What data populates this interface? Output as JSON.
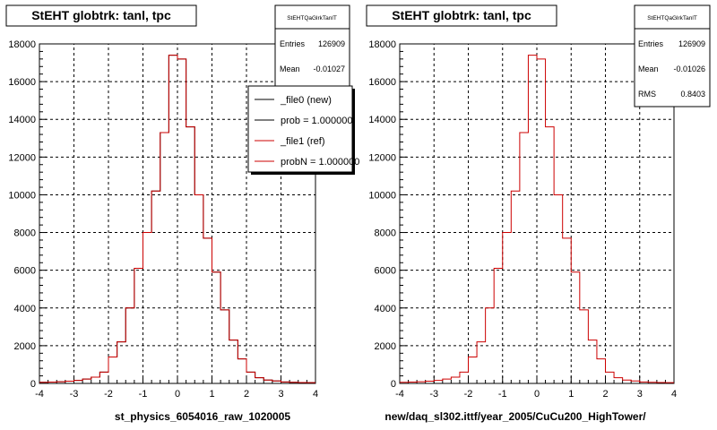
{
  "charts": [
    {
      "title": "StEHT globtrk: tanl, tpc",
      "xlabel": "st_physics_6054016_raw_1020005",
      "stats": {
        "name": "StEHTQaGlrkTanlT",
        "rows": [
          {
            "label": "Entries",
            "value": "126909"
          },
          {
            "label": "Mean",
            "value": "-0.01027"
          }
        ]
      },
      "legend": [
        {
          "label": "_file0 (new)",
          "color": "#000000"
        },
        {
          "label": "prob = 1.000000",
          "color": "#000000"
        },
        {
          "label": "_file1 (ref)",
          "color": "#cc0000"
        },
        {
          "label": "probN = 1.000000",
          "color": "#cc0000"
        }
      ]
    },
    {
      "title": "StEHT globtrk: tanl, tpc",
      "xlabel": "new/daq_sl302.ittf/year_2005/CuCu200_HighTower/",
      "stats": {
        "name": "StEHTQaGlrkTanlT",
        "rows": [
          {
            "label": "Entries",
            "value": "126909"
          },
          {
            "label": "Mean",
            "value": "-0.01026"
          },
          {
            "label": "RMS",
            "value": "0.8403"
          }
        ]
      },
      "legend": []
    }
  ],
  "chart_data": [
    {
      "type": "histogram",
      "xlim": [
        -4,
        4
      ],
      "ylim": [
        0,
        18000
      ],
      "xticks": [
        -4,
        -3,
        -2,
        -1,
        0,
        1,
        2,
        3,
        4
      ],
      "yticks": [
        0,
        2000,
        4000,
        6000,
        8000,
        10000,
        12000,
        14000,
        16000,
        18000
      ],
      "grid": true,
      "bin_edges": [
        -4.0,
        -3.75,
        -3.5,
        -3.25,
        -3.0,
        -2.75,
        -2.5,
        -2.25,
        -2.0,
        -1.75,
        -1.5,
        -1.25,
        -1.0,
        -0.75,
        -0.5,
        -0.25,
        0.0,
        0.25,
        0.5,
        0.75,
        1.0,
        1.25,
        1.5,
        1.75,
        2.0,
        2.25,
        2.5,
        2.75,
        3.0,
        3.25,
        3.5,
        3.75,
        4.0
      ],
      "series": [
        {
          "name": "_file0 (new)",
          "color": "#000000",
          "values": [
            60,
            70,
            90,
            120,
            160,
            230,
            330,
            600,
            1400,
            2200,
            4000,
            6100,
            8000,
            10200,
            13300,
            17400,
            17200,
            13600,
            10000,
            7700,
            5900,
            3900,
            2300,
            1300,
            600,
            300,
            180,
            130,
            80,
            60,
            50,
            40
          ]
        },
        {
          "name": "_file1 (ref)",
          "color": "#cc0000",
          "values": [
            60,
            70,
            90,
            120,
            160,
            230,
            330,
            600,
            1400,
            2200,
            4000,
            6100,
            8000,
            10200,
            13300,
            17400,
            17200,
            13600,
            10000,
            7700,
            5900,
            3900,
            2300,
            1300,
            600,
            300,
            180,
            130,
            80,
            60,
            50,
            40
          ]
        }
      ]
    },
    {
      "type": "histogram",
      "xlim": [
        -4,
        4
      ],
      "ylim": [
        0,
        18000
      ],
      "xticks": [
        -4,
        -3,
        -2,
        -1,
        0,
        1,
        2,
        3,
        4
      ],
      "yticks": [
        0,
        2000,
        4000,
        6000,
        8000,
        10000,
        12000,
        14000,
        16000,
        18000
      ],
      "grid": true,
      "bin_edges": [
        -4.0,
        -3.75,
        -3.5,
        -3.25,
        -3.0,
        -2.75,
        -2.5,
        -2.25,
        -2.0,
        -1.75,
        -1.5,
        -1.25,
        -1.0,
        -0.75,
        -0.5,
        -0.25,
        0.0,
        0.25,
        0.5,
        0.75,
        1.0,
        1.25,
        1.5,
        1.75,
        2.0,
        2.25,
        2.5,
        2.75,
        3.0,
        3.25,
        3.5,
        3.75,
        4.0
      ],
      "series": [
        {
          "name": "",
          "color": "#cc0000",
          "values": [
            60,
            70,
            90,
            120,
            160,
            230,
            330,
            600,
            1400,
            2200,
            4000,
            6100,
            8000,
            10200,
            13300,
            17400,
            17200,
            13600,
            10000,
            7700,
            5900,
            3900,
            2300,
            1300,
            600,
            300,
            180,
            130,
            80,
            60,
            50,
            40
          ]
        }
      ]
    }
  ]
}
